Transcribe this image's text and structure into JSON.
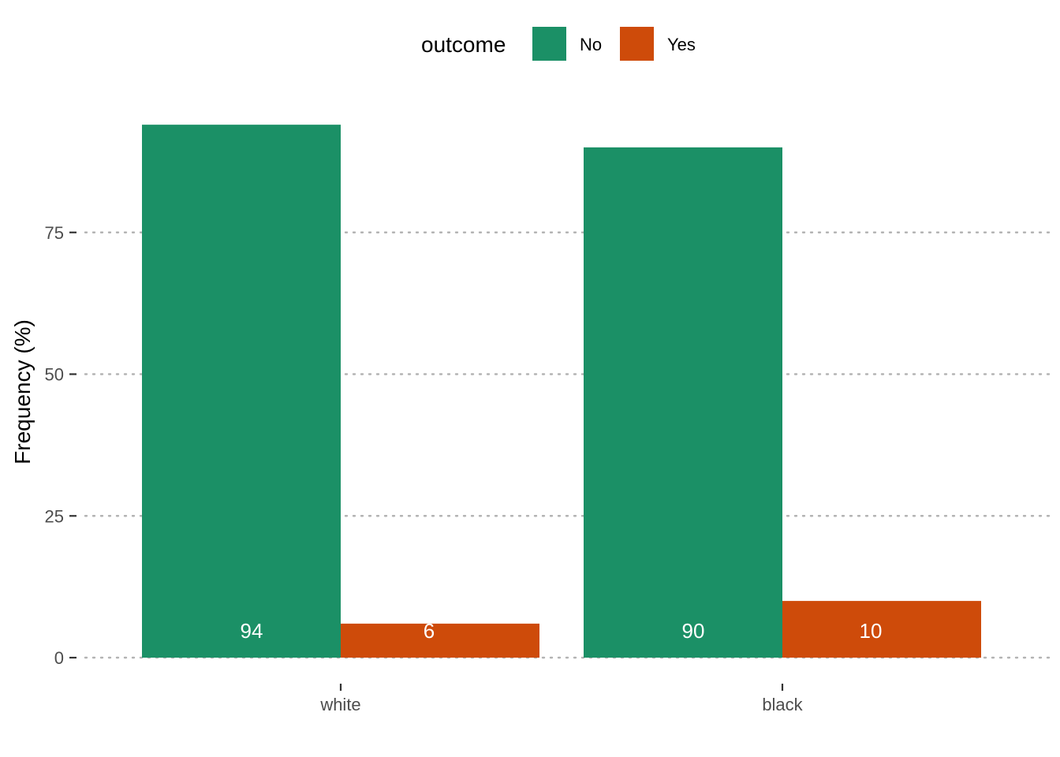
{
  "chart_data": {
    "type": "bar",
    "orientation": "vertical",
    "grouping": "dodge",
    "categories": [
      "white",
      "black"
    ],
    "series": [
      {
        "name": "No",
        "color": "#1b9066",
        "values": [
          94,
          90
        ]
      },
      {
        "name": "Yes",
        "color": "#ce4b0a",
        "values": [
          6,
          10
        ]
      }
    ],
    "data_labels": [
      [
        "94",
        "90"
      ],
      [
        "6",
        "10"
      ]
    ],
    "xlabel": "",
    "ylabel": "Frequency (%)",
    "ylim": [
      0,
      94
    ],
    "yticks": [
      0,
      25,
      50,
      75
    ],
    "grid": "horizontal-dotted",
    "legend": {
      "title": "outcome",
      "placement": "top",
      "entries": [
        "No",
        "Yes"
      ]
    }
  }
}
